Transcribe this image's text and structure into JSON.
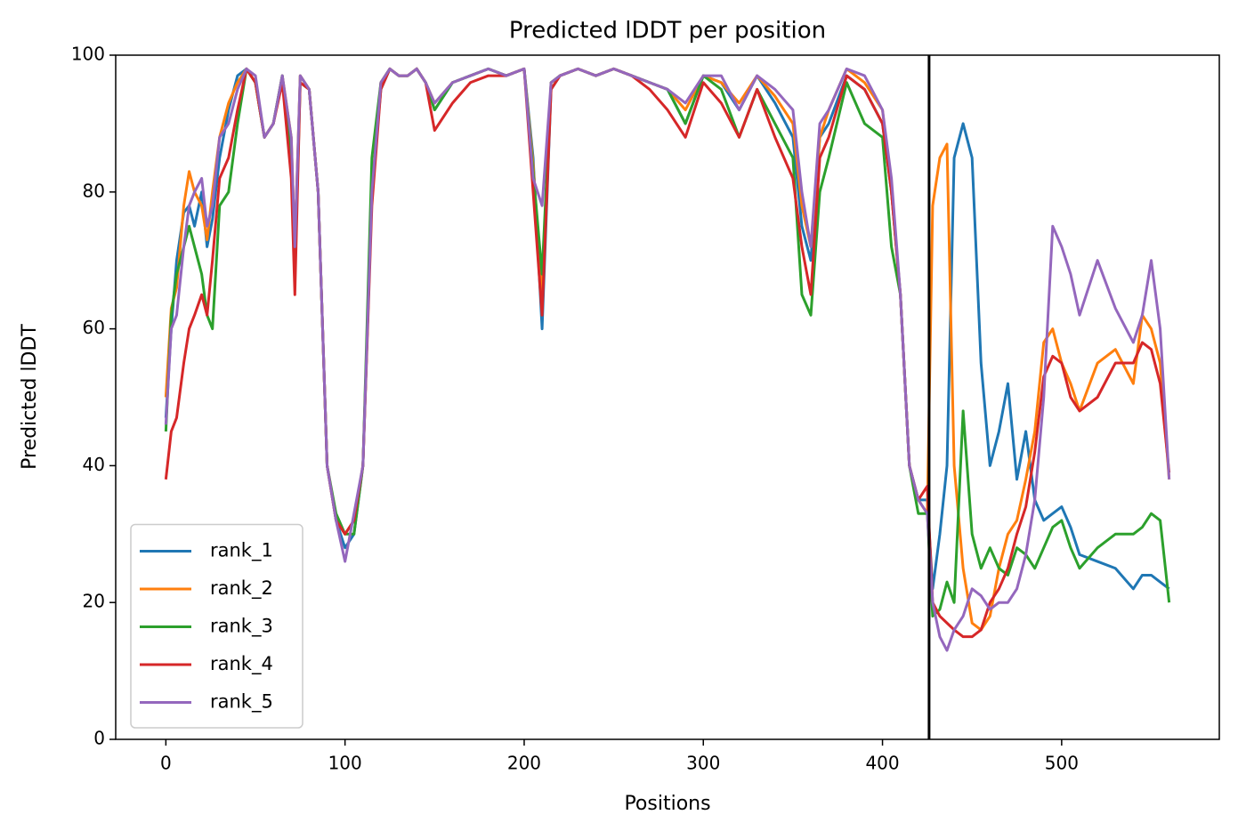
{
  "chart_data": {
    "type": "line",
    "title": "Predicted lDDT per position",
    "xlabel": "Positions",
    "ylabel": "Predicted lDDT",
    "xlim": [
      -28,
      588
    ],
    "ylim": [
      0,
      100
    ],
    "xticks": [
      0,
      100,
      200,
      300,
      400,
      500
    ],
    "yticks": [
      0,
      20,
      40,
      60,
      80,
      100
    ],
    "grid": false,
    "legend": "lower left",
    "vlines": [
      426
    ],
    "vline_color": "#000000",
    "x": [
      0,
      3,
      6,
      10,
      13,
      16,
      20,
      23,
      26,
      30,
      35,
      40,
      45,
      50,
      55,
      60,
      65,
      70,
      72,
      75,
      80,
      85,
      90,
      95,
      100,
      105,
      110,
      115,
      120,
      125,
      130,
      135,
      140,
      145,
      150,
      160,
      170,
      180,
      190,
      200,
      205,
      210,
      215,
      220,
      230,
      240,
      250,
      260,
      270,
      280,
      290,
      300,
      310,
      320,
      330,
      340,
      350,
      355,
      360,
      365,
      370,
      380,
      390,
      400,
      405,
      410,
      415,
      420,
      425,
      428,
      432,
      436,
      440,
      445,
      450,
      455,
      460,
      465,
      470,
      475,
      480,
      485,
      490,
      495,
      500,
      505,
      510,
      520,
      530,
      540,
      545,
      550,
      555,
      560
    ],
    "series": [
      {
        "name": "rank_1",
        "color": "#1f77b4",
        "values": [
          47,
          60,
          70,
          77,
          78,
          75,
          80,
          72,
          76,
          85,
          92,
          97,
          98,
          96,
          88,
          90,
          97,
          85,
          70,
          97,
          95,
          80,
          40,
          32,
          28,
          30,
          40,
          80,
          95,
          98,
          97,
          97,
          98,
          96,
          92,
          96,
          97,
          98,
          97,
          98,
          85,
          60,
          95,
          97,
          98,
          97,
          98,
          97,
          96,
          95,
          90,
          97,
          96,
          92,
          97,
          93,
          88,
          75,
          70,
          88,
          90,
          97,
          95,
          90,
          80,
          65,
          40,
          35,
          35,
          22,
          30,
          40,
          85,
          90,
          85,
          55,
          40,
          45,
          52,
          38,
          45,
          35,
          32,
          33,
          34,
          31,
          27,
          26,
          25,
          22,
          24,
          24,
          23,
          22
        ]
      },
      {
        "name": "rank_2",
        "color": "#ff7f0e",
        "values": [
          50,
          63,
          66,
          78,
          83,
          80,
          78,
          73,
          80,
          88,
          93,
          96,
          98,
          96,
          88,
          90,
          97,
          88,
          72,
          97,
          95,
          80,
          40,
          32,
          30,
          32,
          40,
          80,
          96,
          98,
          97,
          97,
          98,
          96,
          93,
          96,
          97,
          98,
          97,
          98,
          84,
          65,
          96,
          97,
          98,
          97,
          98,
          97,
          96,
          95,
          92,
          97,
          96,
          93,
          97,
          94,
          90,
          78,
          72,
          88,
          92,
          98,
          96,
          92,
          80,
          65,
          40,
          35,
          33,
          78,
          85,
          87,
          40,
          25,
          17,
          16,
          18,
          25,
          30,
          32,
          38,
          45,
          58,
          60,
          55,
          52,
          48,
          55,
          57,
          52,
          62,
          60,
          55,
          38
        ]
      },
      {
        "name": "rank_3",
        "color": "#2ca02c",
        "values": [
          45,
          62,
          68,
          72,
          75,
          72,
          68,
          62,
          60,
          78,
          80,
          90,
          98,
          96,
          88,
          90,
          97,
          86,
          68,
          96,
          95,
          80,
          40,
          33,
          30,
          30,
          40,
          85,
          96,
          98,
          97,
          97,
          98,
          96,
          92,
          96,
          97,
          98,
          97,
          98,
          83,
          68,
          96,
          97,
          98,
          97,
          98,
          97,
          96,
          95,
          90,
          97,
          95,
          88,
          95,
          90,
          85,
          65,
          62,
          80,
          85,
          96,
          90,
          88,
          72,
          65,
          40,
          33,
          33,
          18,
          19,
          23,
          20,
          48,
          30,
          25,
          28,
          25,
          24,
          28,
          27,
          25,
          28,
          31,
          32,
          28,
          25,
          28,
          30,
          30,
          31,
          33,
          32,
          20
        ]
      },
      {
        "name": "rank_4",
        "color": "#d62728",
        "values": [
          38,
          45,
          47,
          55,
          60,
          62,
          65,
          62,
          70,
          82,
          85,
          92,
          98,
          96,
          88,
          90,
          96,
          82,
          65,
          96,
          95,
          80,
          40,
          32,
          30,
          32,
          40,
          78,
          95,
          98,
          97,
          97,
          98,
          96,
          89,
          93,
          96,
          97,
          97,
          98,
          80,
          62,
          95,
          97,
          98,
          97,
          98,
          97,
          95,
          92,
          88,
          96,
          93,
          88,
          95,
          88,
          82,
          72,
          65,
          85,
          88,
          97,
          95,
          90,
          80,
          65,
          40,
          35,
          37,
          20,
          18,
          17,
          16,
          15,
          15,
          16,
          20,
          22,
          25,
          30,
          34,
          42,
          53,
          56,
          55,
          50,
          48,
          50,
          55,
          55,
          58,
          57,
          52,
          39
        ]
      },
      {
        "name": "rank_5",
        "color": "#9467bd",
        "values": [
          46,
          60,
          62,
          72,
          78,
          80,
          82,
          75,
          78,
          88,
          90,
          95,
          98,
          97,
          88,
          90,
          97,
          88,
          72,
          97,
          95,
          80,
          40,
          32,
          26,
          33,
          40,
          80,
          96,
          98,
          97,
          97,
          98,
          96,
          93,
          96,
          97,
          98,
          97,
          98,
          82,
          78,
          96,
          97,
          98,
          97,
          98,
          97,
          96,
          95,
          93,
          97,
          97,
          92,
          97,
          95,
          92,
          80,
          72,
          90,
          92,
          98,
          97,
          92,
          82,
          65,
          40,
          35,
          33,
          20,
          15,
          13,
          16,
          18,
          22,
          21,
          19,
          20,
          20,
          22,
          27,
          35,
          50,
          75,
          72,
          68,
          62,
          70,
          63,
          58,
          62,
          70,
          60,
          38
        ]
      }
    ]
  }
}
